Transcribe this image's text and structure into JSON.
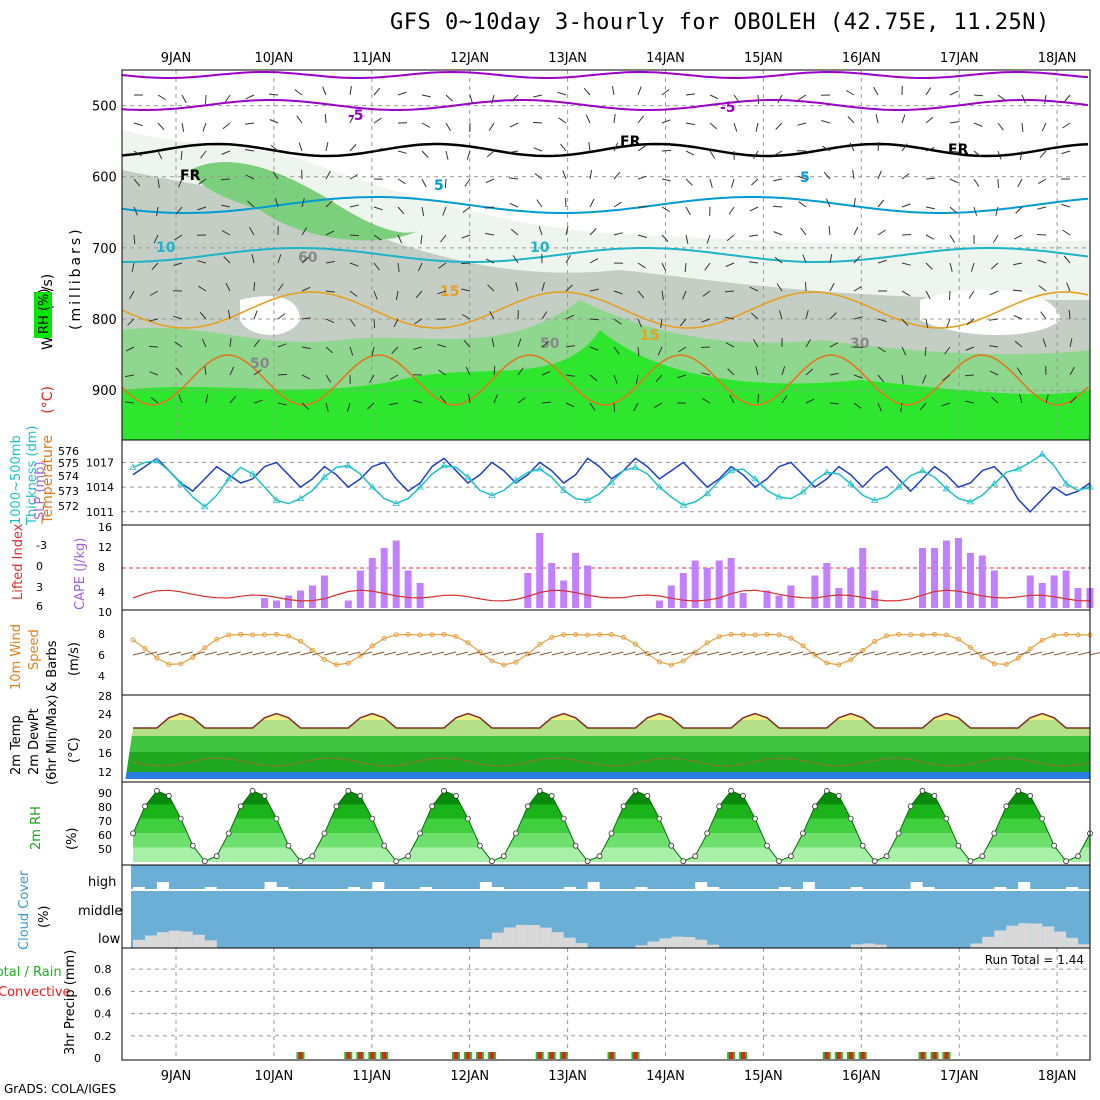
{
  "title": "GFS 0~10day 3-hourly for OBOLEH (42.75E, 11.25N)",
  "credit": "GrADS: COLA/IGES",
  "dates": [
    "9JAN",
    "10JAN",
    "11JAN",
    "12JAN",
    "13JAN",
    "14JAN",
    "15JAN",
    "16JAN",
    "17JAN",
    "18JAN"
  ],
  "colors": {
    "rh_green_light": "#e8f4e8",
    "rh_green_mid": "#7ccf7c",
    "rh_green_bright": "#00e600",
    "rh_grey": "#c8cfc8",
    "temp_purple": "#9b00c8",
    "temp_blue": "#009bd2",
    "temp_cyan": "#1eb4c8",
    "temp_orange": "#e6a020",
    "thickness": "#20c0c8",
    "slp": "#1f3fc8",
    "cape": "#c080ff",
    "lifted_index": "#d83030",
    "wind_speed": "#e6a040",
    "barbs": "#8a5a3a",
    "cloud_blue": "#6baed6",
    "cloud_grey": "#d9d9d9",
    "precip_green": "#20c020",
    "precip_red": "#e02020"
  },
  "panels": {
    "upper": {
      "labels": {
        "rh": "RH (%)",
        "temperature": "Temperature",
        "temp_unit": "(°C)",
        "wind": "Wind (m/s)",
        "pressure": "(millibars)"
      },
      "yticks": [
        "500",
        "600",
        "700",
        "800",
        "900"
      ],
      "contour_labels": [
        "-5",
        "-5",
        "FR",
        "FR",
        "FR",
        "5",
        "5",
        "10",
        "10",
        "15",
        "15",
        "60",
        "50",
        "50",
        "30"
      ]
    },
    "thickness": {
      "labels": {
        "thick": "1000~500mb",
        "thick2": "Thickness (dm)",
        "slp": "SLP (mb)"
      },
      "left_ticks": [
        "576",
        "575",
        "574",
        "573",
        "572"
      ],
      "right_ticks": [
        "1017",
        "1014",
        "1011"
      ]
    },
    "cape": {
      "labels": {
        "li": "Lifted Index",
        "cape": "CAPE (J/kg)"
      },
      "left_ticks": [
        "-3",
        "0",
        "3",
        "6"
      ],
      "right_ticks": [
        "16",
        "12",
        "8",
        "4"
      ]
    },
    "wind10m": {
      "labels": {
        "a": "10m Wind",
        "b": "Speed",
        "c": "& Barbs",
        "unit": "(m/s)"
      },
      "ticks": [
        "10",
        "8",
        "6",
        "4"
      ]
    },
    "temp2m": {
      "labels": {
        "a": "2m Temp",
        "b": "2m DewPt",
        "c": "(6hr Min/Max)",
        "unit": "(°C)"
      },
      "ticks": [
        "28",
        "24",
        "20",
        "16",
        "12"
      ]
    },
    "rh2m": {
      "labels": {
        "a": "2m RH",
        "unit": "(%)"
      },
      "ticks": [
        "90",
        "80",
        "70",
        "60",
        "50"
      ]
    },
    "cloud": {
      "labels": {
        "a": "Cloud Cover",
        "unit": "(%)",
        "high": "high",
        "middle": "middle",
        "low": "low"
      }
    },
    "precip": {
      "labels": {
        "a": "Total / Rain",
        "b": "Convective",
        "c": "3hr Precip (mm)",
        "run_total": "Run Total = 1.44"
      },
      "ticks": [
        "0.8",
        "0.6",
        "0.4",
        "0.2",
        "0"
      ]
    }
  },
  "chart_data": [
    {
      "type": "line",
      "title": "1000~500mb Thickness (dm) / SLP (mb)",
      "x": [
        0,
        3,
        6,
        9,
        12,
        15,
        18,
        21,
        24,
        27,
        30,
        33,
        36,
        39,
        42,
        45,
        48,
        51,
        54,
        57,
        60,
        63,
        66,
        69,
        72,
        75,
        78,
        81,
        84,
        87,
        90,
        93,
        96,
        99,
        102,
        105,
        108,
        111,
        114,
        117,
        120,
        123,
        126,
        129,
        132,
        135,
        138,
        141,
        144,
        147,
        150,
        153,
        156,
        159,
        162,
        165,
        168,
        171,
        174,
        177,
        180,
        183,
        186,
        189,
        192,
        195,
        198,
        201,
        204,
        207,
        210,
        213,
        216,
        219,
        222,
        225,
        228,
        231,
        234,
        237,
        240
      ],
      "series": [
        {
          "name": "SLP (mb)",
          "axis": "right",
          "values": [
            1015.5,
            1016.5,
            1017.5,
            1016,
            1014.5,
            1013.5,
            1015,
            1016.5,
            1015.5,
            1014.5,
            1015,
            1016.5,
            1017,
            1015.5,
            1014,
            1015,
            1016.5,
            1015.5,
            1014,
            1015,
            1016.5,
            1017,
            1015,
            1013.5,
            1014.5,
            1016.5,
            1017.5,
            1016,
            1014.5,
            1015.5,
            1017,
            1016,
            1014.5,
            1015.5,
            1017,
            1016,
            1014.5,
            1015.5,
            1017.5,
            1016.5,
            1015,
            1016,
            1017.5,
            1016.5,
            1015,
            1016,
            1017,
            1015.5,
            1014,
            1015,
            1016.5,
            1015.5,
            1014,
            1015,
            1016.5,
            1017,
            1015.5,
            1014,
            1015,
            1016.5,
            1015.5,
            1014,
            1015.5,
            1016.5,
            1015,
            1013.5,
            1015,
            1016.5,
            1015.5,
            1014,
            1014.5,
            1016,
            1016.5,
            1015,
            1012.5,
            1011,
            1012.5,
            1014,
            1013,
            1013.5,
            1014.5
          ]
        },
        {
          "name": "1000~500mb Thickness (dm)",
          "axis": "left",
          "values": [
            575.2,
            575.5,
            575.6,
            575,
            574.2,
            573.4,
            572.8,
            573.5,
            574.5,
            575.2,
            574.8,
            574,
            573.2,
            573,
            573.3,
            573.8,
            574.6,
            575.2,
            575.3,
            574.8,
            574,
            573.3,
            573,
            573.3,
            574,
            574.8,
            575.3,
            575.2,
            574.6,
            573.8,
            573.5,
            573.8,
            574.4,
            574.9,
            575.1,
            574.6,
            573.8,
            573.3,
            573.2,
            573.6,
            574.3,
            575,
            575.2,
            574.8,
            574,
            573.4,
            572.9,
            573.1,
            573.6,
            574.4,
            575,
            575.1,
            574.5,
            573.8,
            573.4,
            573.3,
            573.7,
            574.4,
            574.9,
            574.8,
            574.2,
            573.5,
            573.2,
            573.4,
            574,
            574.7,
            575,
            574.6,
            573.9,
            573.3,
            573.1,
            573.5,
            574.2,
            574.9,
            575.1,
            575.5,
            576,
            575.3,
            574.2,
            573.8,
            574
          ]
        }
      ],
      "ylim_left": [
        572,
        576.5
      ],
      "ylim_right": [
        1010,
        1019
      ]
    },
    {
      "type": "bar",
      "title": "CAPE (J/kg)",
      "x": [
        0,
        3,
        6,
        9,
        12,
        15,
        18,
        21,
        24,
        27,
        30,
        33,
        36,
        39,
        42,
        45,
        48,
        51,
        54,
        57,
        60,
        63,
        66,
        69,
        72,
        75,
        78,
        81,
        84,
        87,
        90,
        93,
        96,
        99,
        102,
        105,
        108,
        111,
        114,
        117,
        120,
        123,
        126,
        129,
        132,
        135,
        138,
        141,
        144,
        147,
        150,
        153,
        156,
        159,
        162,
        165,
        168,
        171,
        174,
        177,
        180,
        183,
        186,
        189,
        192,
        195,
        198,
        201,
        204,
        207,
        210,
        213,
        216,
        219,
        222,
        225,
        228,
        231,
        234,
        237,
        240
      ],
      "values": [
        0,
        0,
        0,
        0,
        0,
        0,
        0,
        0,
        0,
        0,
        0,
        2,
        1.5,
        2.5,
        3.5,
        4.5,
        6.5,
        0,
        1.5,
        7.5,
        10,
        12,
        13.5,
        7.5,
        5,
        0,
        0,
        0,
        0,
        0,
        0,
        0,
        0,
        7,
        15,
        9,
        5.5,
        11,
        8.5,
        0,
        0,
        0,
        0,
        0,
        1.5,
        4.5,
        7,
        9.5,
        8,
        9.5,
        10,
        3,
        0,
        3.5,
        2.5,
        4.5,
        0,
        6.5,
        9,
        4,
        8,
        12,
        3.5,
        0,
        0,
        0,
        12,
        12,
        13.5,
        14,
        11,
        10.5,
        7.5,
        0,
        0,
        6.5,
        5,
        6.5,
        7.5,
        4,
        4
      ],
      "ylim": [
        0,
        16
      ]
    }
  ]
}
